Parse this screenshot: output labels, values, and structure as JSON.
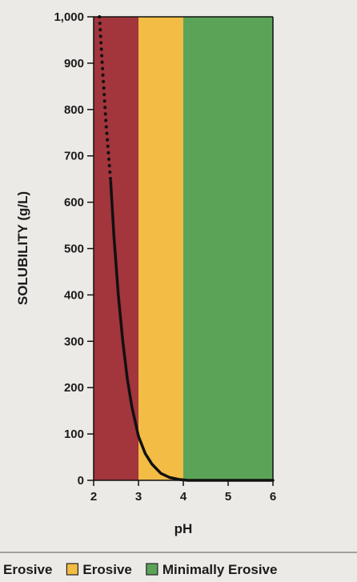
{
  "chart_data": {
    "type": "line",
    "title": "",
    "xlabel": "pH",
    "ylabel": "SOLUBILITY (g/L)",
    "xlim": [
      2,
      6
    ],
    "ylim": [
      0,
      1000
    ],
    "x_ticks": [
      "2",
      "3",
      "4",
      "5",
      "6"
    ],
    "y_ticks": [
      "0",
      "100",
      "200",
      "300",
      "400",
      "500",
      "600",
      "700",
      "800",
      "900",
      "1,000"
    ],
    "zones": [
      {
        "label": "Extremely Erosive",
        "from": 2,
        "to": 3,
        "color": "#a3353c"
      },
      {
        "label": "Erosive",
        "from": 3,
        "to": 4,
        "color": "#f2bc45"
      },
      {
        "label": "Minimally Erosive",
        "from": 4,
        "to": 6,
        "color": "#5ba457"
      }
    ],
    "series": [
      {
        "style": "solid",
        "color": "#111111",
        "x": [
          2.38,
          2.45,
          2.55,
          2.65,
          2.75,
          2.85,
          3.0,
          3.15,
          3.3,
          3.5,
          3.7,
          3.9,
          4.1,
          4.5,
          5.0,
          6.0
        ],
        "y": [
          645,
          530,
          400,
          300,
          220,
          160,
          95,
          58,
          35,
          15,
          6,
          2,
          0,
          0,
          0,
          0
        ]
      },
      {
        "style": "dotted",
        "color": "#111111",
        "x": [
          2.13,
          2.2,
          2.28,
          2.38
        ],
        "y": [
          1000,
          885,
          765,
          645
        ]
      }
    ],
    "grid": false,
    "legend": "bottom"
  }
}
